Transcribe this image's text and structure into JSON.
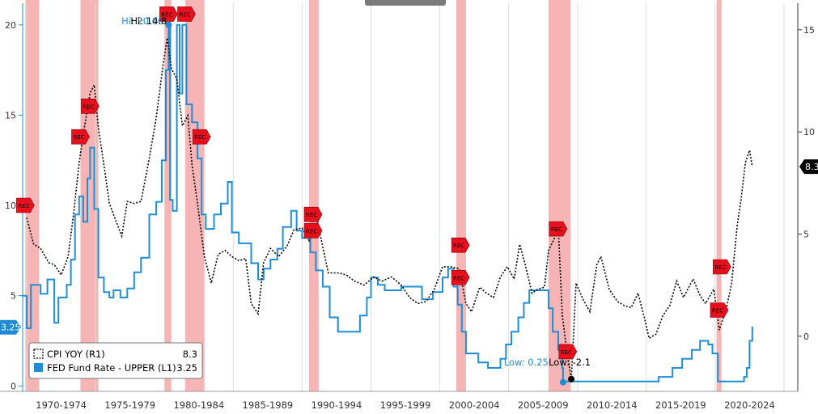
{
  "chart_data": {
    "type": "line",
    "title": "",
    "xlabel": "",
    "x_range": [
      1969.7,
      2026.0
    ],
    "x_tick_labels": [
      "1970-1974",
      "1975-1979",
      "1980-1984",
      "1985-1989",
      "1990-1994",
      "1995-1999",
      "2000-2004",
      "2005-2009",
      "2010-2014",
      "2015-2019",
      "2020-2024"
    ],
    "left_axis": {
      "ylim": [
        -0.3,
        21.2
      ],
      "ticks": [
        0,
        5,
        10,
        15,
        20
      ],
      "tick_labels": [
        "0",
        "5",
        "10",
        "15",
        "20"
      ]
    },
    "right_axis": {
      "ylim": [
        -2.7,
        16.3
      ],
      "ticks": [
        0,
        5,
        10,
        15
      ],
      "tick_labels": [
        "0",
        "5",
        "10",
        "15"
      ]
    },
    "grid": "vertical",
    "legend_position": "bottom-left",
    "series": [
      {
        "name": "CPI YOY  (R1)",
        "axis": "right",
        "last_value": "8.3",
        "color": "#000000",
        "style": "dotted",
        "points": [
          [
            1970.0,
            5.8
          ],
          [
            1970.5,
            4.5
          ],
          [
            1971.0,
            4.3
          ],
          [
            1971.6,
            3.6
          ],
          [
            1972.0,
            3.5
          ],
          [
            1972.5,
            3.0
          ],
          [
            1973.0,
            3.9
          ],
          [
            1973.4,
            6.0
          ],
          [
            1973.8,
            8.5
          ],
          [
            1974.2,
            10.3
          ],
          [
            1974.6,
            11.9
          ],
          [
            1974.9,
            12.3
          ],
          [
            1975.2,
            10.2
          ],
          [
            1975.6,
            8.4
          ],
          [
            1976.0,
            6.5
          ],
          [
            1976.5,
            5.6
          ],
          [
            1976.9,
            4.9
          ],
          [
            1977.3,
            6.6
          ],
          [
            1977.8,
            6.5
          ],
          [
            1978.3,
            6.6
          ],
          [
            1978.9,
            8.7
          ],
          [
            1979.4,
            10.7
          ],
          [
            1979.9,
            13.3
          ],
          [
            1980.2,
            14.6
          ],
          [
            1980.5,
            13.1
          ],
          [
            1980.9,
            12.6
          ],
          [
            1981.3,
            10.3
          ],
          [
            1981.7,
            10.8
          ],
          [
            1982.0,
            8.4
          ],
          [
            1982.4,
            6.5
          ],
          [
            1982.9,
            3.9
          ],
          [
            1983.4,
            2.6
          ],
          [
            1983.9,
            4.0
          ],
          [
            1984.4,
            4.2
          ],
          [
            1984.9,
            3.9
          ],
          [
            1985.4,
            3.7
          ],
          [
            1985.9,
            3.8
          ],
          [
            1986.3,
            1.6
          ],
          [
            1986.8,
            1.1
          ],
          [
            1987.2,
            3.6
          ],
          [
            1987.7,
            4.3
          ],
          [
            1988.3,
            3.9
          ],
          [
            1988.9,
            4.4
          ],
          [
            1989.4,
            5.2
          ],
          [
            1990.0,
            5.3
          ],
          [
            1990.5,
            4.7
          ],
          [
            1990.9,
            6.3
          ],
          [
            1991.4,
            4.7
          ],
          [
            1991.9,
            3.1
          ],
          [
            1992.6,
            3.1
          ],
          [
            1993.2,
            3.0
          ],
          [
            1993.8,
            2.7
          ],
          [
            1994.5,
            2.5
          ],
          [
            1995.2,
            2.9
          ],
          [
            1995.8,
            2.7
          ],
          [
            1996.5,
            2.9
          ],
          [
            1997.2,
            2.5
          ],
          [
            1997.8,
            1.9
          ],
          [
            1998.4,
            1.6
          ],
          [
            1999.0,
            1.7
          ],
          [
            1999.6,
            2.3
          ],
          [
            2000.2,
            3.4
          ],
          [
            2000.8,
            3.4
          ],
          [
            2001.4,
            3.3
          ],
          [
            2001.9,
            1.6
          ],
          [
            2002.3,
            1.2
          ],
          [
            2002.9,
            2.4
          ],
          [
            2003.4,
            2.1
          ],
          [
            2003.9,
            1.9
          ],
          [
            2004.4,
            2.9
          ],
          [
            2004.9,
            3.4
          ],
          [
            2005.4,
            2.8
          ],
          [
            2005.8,
            4.5
          ],
          [
            2006.2,
            3.5
          ],
          [
            2006.7,
            2.1
          ],
          [
            2007.1,
            2.3
          ],
          [
            2007.6,
            2.4
          ],
          [
            2007.9,
            4.2
          ],
          [
            2008.4,
            4.9
          ],
          [
            2008.6,
            5.4
          ],
          [
            2008.9,
            1.0
          ],
          [
            2009.2,
            -0.6
          ],
          [
            2009.55,
            -2.1
          ],
          [
            2009.9,
            2.6
          ],
          [
            2010.4,
            1.8
          ],
          [
            2010.9,
            1.2
          ],
          [
            2011.4,
            3.5
          ],
          [
            2011.7,
            3.9
          ],
          [
            2012.3,
            2.3
          ],
          [
            2012.9,
            1.7
          ],
          [
            2013.4,
            1.5
          ],
          [
            2013.9,
            1.4
          ],
          [
            2014.4,
            2.1
          ],
          [
            2014.9,
            0.8
          ],
          [
            2015.2,
            -0.1
          ],
          [
            2015.7,
            0.1
          ],
          [
            2016.2,
            1.0
          ],
          [
            2016.7,
            1.5
          ],
          [
            2017.2,
            2.7
          ],
          [
            2017.7,
            1.9
          ],
          [
            2018.4,
            2.8
          ],
          [
            2018.9,
            2.0
          ],
          [
            2019.3,
            1.6
          ],
          [
            2019.9,
            2.3
          ],
          [
            2020.3,
            0.3
          ],
          [
            2020.8,
            1.3
          ],
          [
            2021.2,
            2.6
          ],
          [
            2021.6,
            5.4
          ],
          [
            2021.9,
            6.8
          ],
          [
            2022.2,
            8.5
          ],
          [
            2022.5,
            9.1
          ],
          [
            2022.7,
            8.3
          ]
        ]
      },
      {
        "name": "FED Fund Rate - UPPER (L1)",
        "axis": "left",
        "last_value": "3.25",
        "color": "#1f8dd6",
        "style": "step",
        "points": [
          [
            1969.7,
            5.0
          ],
          [
            1970.0,
            3.2
          ],
          [
            1970.3,
            5.6
          ],
          [
            1971.0,
            5.1
          ],
          [
            1971.5,
            5.9
          ],
          [
            1972.0,
            3.5
          ],
          [
            1972.3,
            4.9
          ],
          [
            1972.9,
            5.6
          ],
          [
            1973.2,
            7.0
          ],
          [
            1973.5,
            9.5
          ],
          [
            1973.8,
            10.5
          ],
          [
            1974.1,
            9.1
          ],
          [
            1974.4,
            11.5
          ],
          [
            1974.6,
            13.2
          ],
          [
            1974.9,
            9.8
          ],
          [
            1975.2,
            6.0
          ],
          [
            1975.6,
            5.2
          ],
          [
            1976.0,
            4.9
          ],
          [
            1976.3,
            5.3
          ],
          [
            1976.8,
            4.9
          ],
          [
            1977.3,
            5.4
          ],
          [
            1977.8,
            6.3
          ],
          [
            1978.3,
            7.1
          ],
          [
            1978.9,
            9.5
          ],
          [
            1979.4,
            10.2
          ],
          [
            1979.8,
            12.5
          ],
          [
            1980.1,
            17.5
          ],
          [
            1980.3,
            20.0
          ],
          [
            1980.4,
            10.3
          ],
          [
            1980.6,
            9.7
          ],
          [
            1980.9,
            20.0
          ],
          [
            1981.1,
            16.2
          ],
          [
            1981.3,
            20.0
          ],
          [
            1981.6,
            15.6
          ],
          [
            1982.0,
            14.6
          ],
          [
            1982.4,
            12.6
          ],
          [
            1982.7,
            9.5
          ],
          [
            1983.0,
            8.7
          ],
          [
            1983.6,
            9.5
          ],
          [
            1984.1,
            10.1
          ],
          [
            1984.6,
            11.3
          ],
          [
            1984.9,
            8.5
          ],
          [
            1985.4,
            7.9
          ],
          [
            1985.9,
            7.9
          ],
          [
            1986.3,
            6.8
          ],
          [
            1986.8,
            5.9
          ],
          [
            1987.2,
            6.5
          ],
          [
            1987.7,
            7.0
          ],
          [
            1988.2,
            7.6
          ],
          [
            1988.6,
            8.8
          ],
          [
            1989.2,
            9.7
          ],
          [
            1989.6,
            8.6
          ],
          [
            1990.0,
            8.2
          ],
          [
            1990.6,
            7.4
          ],
          [
            1991.0,
            6.4
          ],
          [
            1991.5,
            5.5
          ],
          [
            1992.0,
            3.8
          ],
          [
            1992.6,
            3.0
          ],
          [
            1993.5,
            3.0
          ],
          [
            1993.9,
            3.0
          ],
          [
            1994.2,
            3.9
          ],
          [
            1994.7,
            4.9
          ],
          [
            1995.0,
            6.0
          ],
          [
            1995.5,
            5.6
          ],
          [
            1996.0,
            5.3
          ],
          [
            1997.2,
            5.5
          ],
          [
            1998.7,
            4.8
          ],
          [
            1999.0,
            4.8
          ],
          [
            1999.5,
            5.2
          ],
          [
            2000.2,
            6.0
          ],
          [
            2000.6,
            6.5
          ],
          [
            2001.0,
            5.5
          ],
          [
            2001.3,
            4.5
          ],
          [
            2001.6,
            3.0
          ],
          [
            2001.9,
            1.8
          ],
          [
            2002.8,
            1.3
          ],
          [
            2003.5,
            1.0
          ],
          [
            2004.4,
            1.5
          ],
          [
            2004.8,
            2.3
          ],
          [
            2005.2,
            3.0
          ],
          [
            2005.7,
            3.8
          ],
          [
            2006.1,
            4.6
          ],
          [
            2006.5,
            5.3
          ],
          [
            2007.6,
            5.3
          ],
          [
            2007.9,
            4.3
          ],
          [
            2008.2,
            3.0
          ],
          [
            2008.6,
            2.0
          ],
          [
            2008.9,
            1.0
          ],
          [
            2008.95,
            0.25
          ],
          [
            2015.9,
            0.5
          ],
          [
            2016.9,
            1.0
          ],
          [
            2017.6,
            1.5
          ],
          [
            2018.3,
            2.0
          ],
          [
            2018.9,
            2.5
          ],
          [
            2019.5,
            2.3
          ],
          [
            2019.8,
            1.8
          ],
          [
            2020.2,
            0.25
          ],
          [
            2022.1,
            0.5
          ],
          [
            2022.3,
            1.0
          ],
          [
            2022.5,
            2.5
          ],
          [
            2022.7,
            3.25
          ]
        ]
      }
    ],
    "recessions": [
      [
        1969.9,
        1970.9
      ],
      [
        1973.9,
        1975.2
      ],
      [
        1980.0,
        1980.5
      ],
      [
        1981.5,
        1982.9
      ],
      [
        1990.5,
        1991.2
      ],
      [
        2001.2,
        2001.9
      ],
      [
        2007.9,
        2009.5
      ],
      [
        2020.1,
        2020.4
      ]
    ],
    "rec_markers": [
      {
        "label": "REC",
        "x": 1969.9,
        "y_axis": "left",
        "y": 10.0
      },
      {
        "label": "REC",
        "x": 1973.9,
        "y_axis": "left",
        "y": 13.8
      },
      {
        "label": "REC",
        "x": 1974.6,
        "y_axis": "left",
        "y": 15.5
      },
      {
        "label": "REC",
        "x": 1980.3,
        "y_axis": "left",
        "y": 20.6
      },
      {
        "label": "REC",
        "x": 1981.6,
        "y_axis": "left",
        "y": 20.6
      },
      {
        "label": "REC",
        "x": 1982.7,
        "y_axis": "left",
        "y": 13.8
      },
      {
        "label": "REC",
        "x": 1990.8,
        "y_axis": "left",
        "y": 9.5
      },
      {
        "label": "REC",
        "x": 1990.8,
        "y_axis": "left",
        "y": 8.6
      },
      {
        "label": "REC",
        "x": 2001.5,
        "y_axis": "left",
        "y": 7.8
      },
      {
        "label": "REC",
        "x": 2001.5,
        "y_axis": "left",
        "y": 6.0
      },
      {
        "label": "REC",
        "x": 2008.6,
        "y_axis": "left",
        "y": 8.7
      },
      {
        "label": "REC",
        "x": 2009.3,
        "y_axis": "left",
        "y": 1.9
      },
      {
        "label": "REC",
        "x": 2020.5,
        "y_axis": "left",
        "y": 6.6
      },
      {
        "label": "REC",
        "x": 2020.3,
        "y_axis": "left",
        "y": 4.2
      }
    ],
    "annotations": {
      "fed_high": {
        "label": "Hi: 20.00",
        "x": 1980.3,
        "y": 20.0
      },
      "cpi_high": {
        "label": "Hi: 14.8",
        "x": 1980.2,
        "y": 14.6
      },
      "fed_low": {
        "label": "Low: 0.25",
        "x": 2008.95,
        "y": 0.25
      },
      "cpi_low": {
        "label": "Low: -2.1",
        "x": 2009.55,
        "y": -2.1
      }
    },
    "right_badge": "8.3",
    "left_badge": "3.25",
    "legend": [
      {
        "label": "CPI YOY  (R1)",
        "value": "8.3"
      },
      {
        "label": "FED Fund Rate - UPPER (L1)",
        "value": "3.25"
      }
    ]
  },
  "colors": {
    "cpi": "#000000",
    "fed": "#1f8dd6",
    "recession": "#f4a7a7",
    "rec_marker": "#e8101c",
    "grid": "#dddddd",
    "axis": "#333333",
    "badge_blue": "#1f8dd6",
    "badge_black": "#000000"
  }
}
